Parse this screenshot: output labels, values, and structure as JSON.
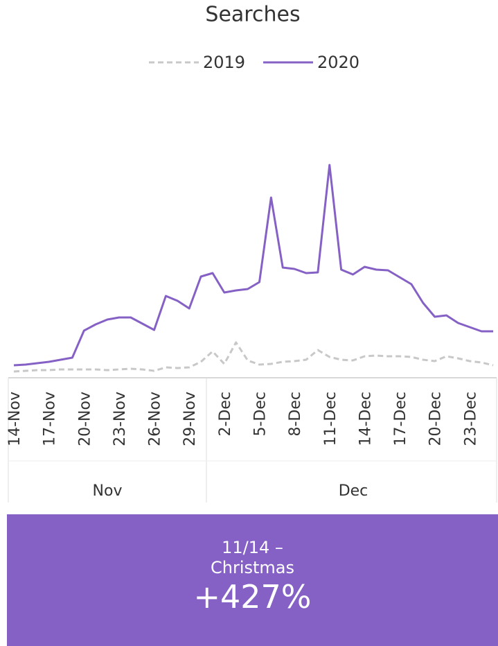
{
  "chart_data": {
    "type": "line",
    "title": "Searches",
    "categories": [
      "14-Nov",
      null,
      null,
      "17-Nov",
      null,
      null,
      "20-Nov",
      null,
      null,
      "23-Nov",
      null,
      null,
      "26-Nov",
      null,
      null,
      "29-Nov",
      null,
      null,
      "2-Dec",
      null,
      null,
      "5-Dec",
      null,
      null,
      "8-Dec",
      null,
      null,
      "11-Dec",
      null,
      null,
      "14-Dec",
      null,
      null,
      "17-Dec",
      null,
      null,
      "20-Dec",
      null,
      null,
      "23-Dec",
      null,
      null
    ],
    "groups": [
      "Nov",
      "Dec"
    ],
    "series": [
      {
        "name": "2019",
        "color": "#c8c8c8",
        "style": "dashed",
        "values": [
          9,
          10,
          11,
          11,
          12,
          12,
          12,
          12,
          11,
          12,
          13,
          12,
          10,
          15,
          14,
          15,
          23,
          38,
          20,
          51,
          25,
          19,
          20,
          23,
          24,
          26,
          40,
          30,
          26,
          25,
          31,
          32,
          31,
          31,
          30,
          26,
          24,
          31,
          28,
          24,
          22,
          18
        ]
      },
      {
        "name": "2020",
        "color": "#8661c5",
        "style": "solid",
        "values": [
          18,
          19,
          21,
          23,
          26,
          29,
          68,
          77,
          84,
          87,
          87,
          78,
          69,
          118,
          111,
          100,
          146,
          151,
          123,
          126,
          128,
          138,
          260,
          159,
          157,
          151,
          152,
          307,
          156,
          149,
          160,
          156,
          155,
          145,
          135,
          108,
          88,
          90,
          79,
          73,
          67,
          67
        ]
      }
    ],
    "ylim": [
      0,
      320
    ],
    "legend": "top"
  },
  "footer": {
    "line1": "11/14 –",
    "line2": "Christmas",
    "value": "+427%"
  }
}
